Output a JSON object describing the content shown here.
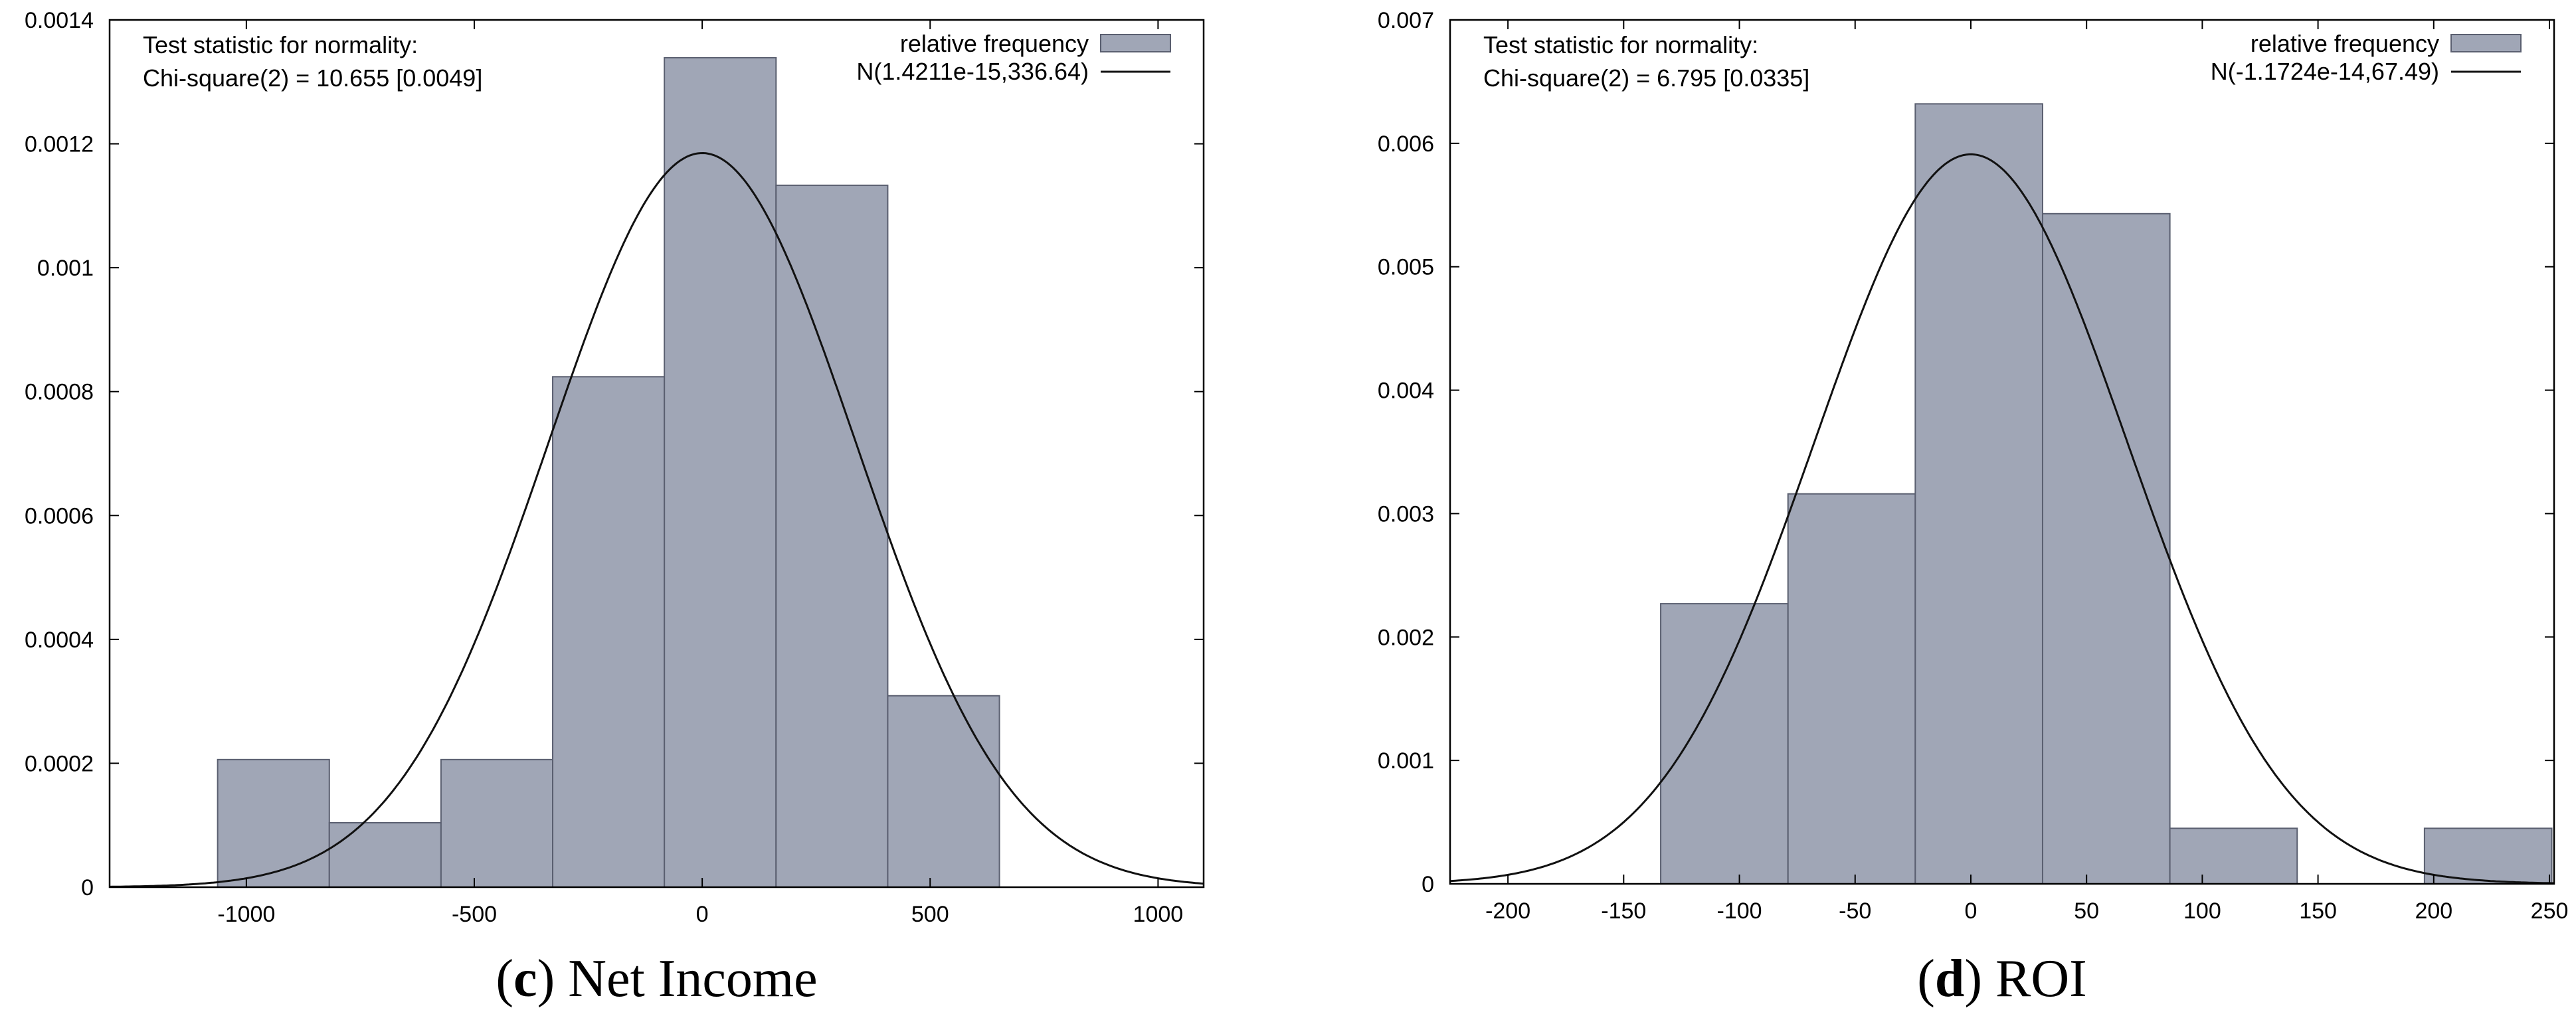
{
  "chart_data": [
    {
      "type": "bar",
      "caption_letter": "c",
      "caption_text": " Net Income",
      "annotation": [
        "Test statistic for normality:",
        "Chi-square(2) = 10.655 [0.0049]"
      ],
      "legend": [
        "relative frequency",
        "N(1.4211e-15,336.64)"
      ],
      "legend_position": "top-right",
      "xlim": [
        -1300,
        1100
      ],
      "ylim": [
        0,
        0.0014
      ],
      "xticks": [
        -1000,
        -500,
        0,
        500,
        1000
      ],
      "xtick_labels": [
        "-1000",
        "-500",
        "0",
        "500",
        "1000"
      ],
      "yticks": [
        0,
        0.0002,
        0.0004,
        0.0006,
        0.0008,
        0.001,
        0.0012,
        0.0014
      ],
      "ytick_labels": [
        "0",
        "0.0002",
        "0.0004",
        "0.0006",
        "0.0008",
        "0.001",
        "0.0012",
        "0.0014"
      ],
      "bins": [
        {
          "x0": -1063,
          "x1": -818,
          "value": 0.000206
        },
        {
          "x0": -818,
          "x1": -573,
          "value": 0.000104
        },
        {
          "x0": -573,
          "x1": -328,
          "value": 0.000206
        },
        {
          "x0": -328,
          "x1": -83,
          "value": 0.000824
        },
        {
          "x0": -83,
          "x1": 162,
          "value": 0.001339
        },
        {
          "x0": 162,
          "x1": 407,
          "value": 0.001133
        },
        {
          "x0": 407,
          "x1": 652,
          "value": 0.000309
        }
      ],
      "normal": {
        "mean": 0,
        "sd": 336.64
      }
    },
    {
      "type": "bar",
      "caption_letter": "d",
      "caption_text": " ROI",
      "annotation": [
        "Test statistic for normality:",
        "Chi-square(2) = 6.795 [0.0335]"
      ],
      "legend": [
        "relative frequency",
        "N(-1.1724e-14,67.49)"
      ],
      "legend_position": "top-right",
      "xlim": [
        -225,
        252
      ],
      "ylim": [
        0,
        0.007
      ],
      "xticks": [
        -200,
        -150,
        -100,
        -50,
        0,
        50,
        100,
        150,
        200,
        250
      ],
      "xtick_labels": [
        "-200",
        "-150",
        "-100",
        "-50",
        "0",
        "50",
        "100",
        "150",
        "200",
        "250"
      ],
      "yticks": [
        0,
        0.001,
        0.002,
        0.003,
        0.004,
        0.005,
        0.006,
        0.007
      ],
      "ytick_labels": [
        "0",
        "0.001",
        "0.002",
        "0.003",
        "0.004",
        "0.005",
        "0.006",
        "0.007"
      ],
      "bins": [
        {
          "x0": -134,
          "x1": -79,
          "value": 0.00227
        },
        {
          "x0": -79,
          "x1": -24,
          "value": 0.00316
        },
        {
          "x0": -24,
          "x1": 31,
          "value": 0.00632
        },
        {
          "x0": 31,
          "x1": 86,
          "value": 0.00543
        },
        {
          "x0": 86,
          "x1": 141,
          "value": 0.00045
        },
        {
          "x0": 141,
          "x1": 196,
          "value": 0
        },
        {
          "x0": 196,
          "x1": 251,
          "value": 0.00045
        }
      ],
      "normal": {
        "mean": 0,
        "sd": 67.49
      }
    }
  ]
}
